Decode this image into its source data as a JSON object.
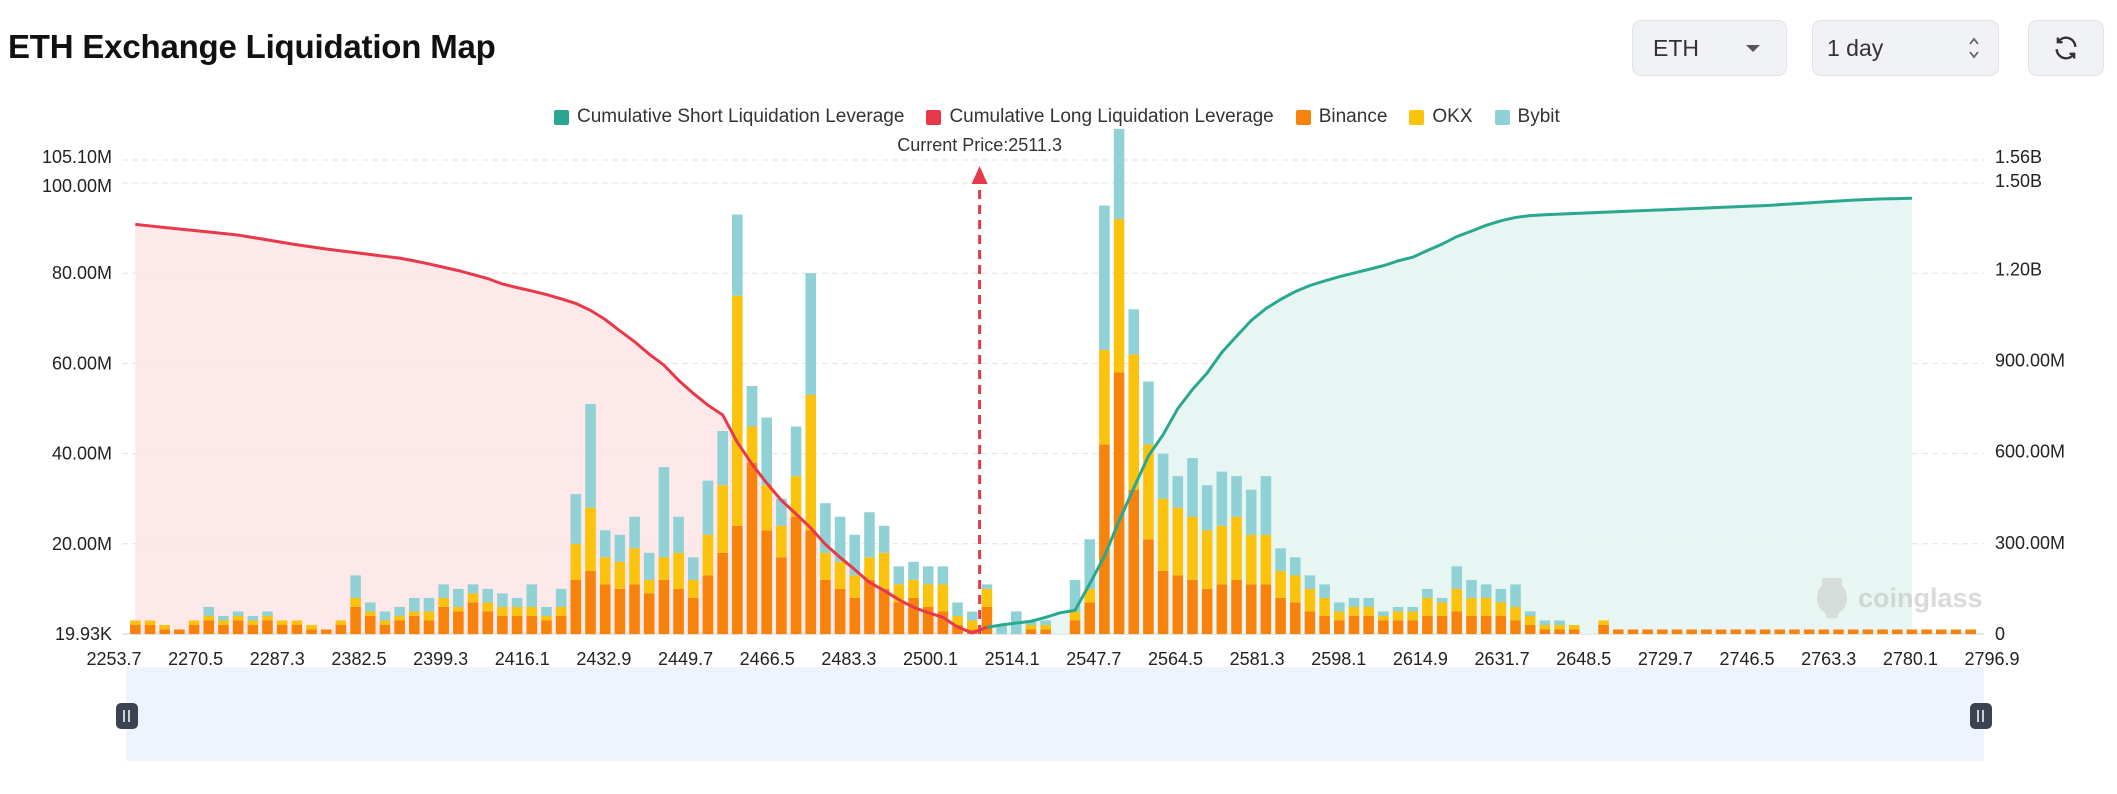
{
  "page": {
    "title": "ETH Exchange Liquidation Map"
  },
  "controls": {
    "symbol": "ETH",
    "period": "1 day",
    "refresh_icon": "refresh-icon"
  },
  "colors": {
    "short": "#2aa88f",
    "long": "#e8394a",
    "binance": "#f7830d",
    "okx": "#fbc20e",
    "bybit": "#8fd1d4",
    "short_fill": "#e4f5f1",
    "long_fill": "#fde4e6",
    "slider_bg": "#eef3fc"
  },
  "chart_data": {
    "type": "bar",
    "title": "",
    "current_price_label": "Current Price:2511.3",
    "current_price_index": 58,
    "legend": [
      "Cumulative Short Liquidation Leverage",
      "Cumulative Long Liquidation Leverage",
      "Binance",
      "OKX",
      "Bybit"
    ],
    "legend_placement": "top-center",
    "grid": true,
    "x_tick_labels": [
      "2253.7",
      "2270.5",
      "2287.3",
      "2382.5",
      "2399.3",
      "2416.1",
      "2432.9",
      "2449.7",
      "2466.5",
      "2483.3",
      "2500.1",
      "2514.1",
      "2547.7",
      "2564.5",
      "2581.3",
      "2598.1",
      "2614.9",
      "2631.7",
      "2648.5",
      "2729.7",
      "2746.5",
      "2763.3",
      "2780.1",
      "2796.9"
    ],
    "y_left": {
      "ticks": [
        "19.93K",
        "20.00M",
        "40.00M",
        "60.00M",
        "80.00M",
        "100.00M",
        "105.10M"
      ],
      "range": [
        0,
        105.1
      ],
      "unit": "M"
    },
    "y_right": {
      "ticks": [
        "0",
        "300.00M",
        "600.00M",
        "900.00M",
        "1.20B",
        "1.50B",
        "1.56B"
      ],
      "range": [
        0,
        1560
      ],
      "unit": "M"
    },
    "series": [
      {
        "name": "Binance",
        "values": [
          2,
          2,
          1,
          1,
          2,
          3,
          2,
          3,
          2,
          3,
          2,
          2,
          1,
          1,
          2,
          6,
          4,
          2,
          3,
          4,
          3,
          6,
          5,
          7,
          5,
          4,
          4,
          4,
          3,
          4,
          12,
          14,
          11,
          10,
          11,
          9,
          12,
          10,
          8,
          13,
          18,
          24,
          38,
          23,
          17,
          26,
          23,
          12,
          10,
          8,
          12,
          10,
          7,
          8,
          6,
          5,
          2,
          1,
          6,
          0,
          0,
          1,
          1,
          0,
          3,
          7,
          42,
          58,
          32,
          21,
          14,
          13,
          12,
          10,
          11,
          12,
          11,
          11,
          8,
          7,
          5,
          4,
          3,
          4,
          4,
          3,
          3,
          3,
          4,
          4,
          5,
          4,
          4,
          4,
          3,
          2,
          1,
          1,
          1,
          0,
          2,
          1,
          1,
          1,
          1,
          1,
          1,
          1,
          1,
          1,
          1,
          1,
          1,
          1,
          1,
          1,
          1,
          1,
          1,
          1,
          1,
          1,
          1,
          1,
          1,
          1
        ]
      },
      {
        "name": "OKX",
        "values": [
          1,
          1,
          1,
          0,
          1,
          1,
          1,
          1,
          1,
          1,
          1,
          1,
          1,
          0,
          1,
          2,
          1,
          1,
          1,
          1,
          2,
          2,
          1,
          2,
          2,
          2,
          2,
          2,
          1,
          2,
          8,
          14,
          6,
          6,
          8,
          3,
          5,
          8,
          4,
          9,
          15,
          51,
          8,
          10,
          7,
          9,
          30,
          6,
          6,
          5,
          5,
          8,
          4,
          4,
          5,
          6,
          2,
          2,
          4,
          0,
          0,
          1,
          1,
          0,
          2,
          3,
          21,
          34,
          30,
          21,
          16,
          15,
          14,
          13,
          13,
          14,
          11,
          11,
          6,
          6,
          5,
          4,
          2,
          2,
          2,
          1,
          2,
          2,
          4,
          3,
          5,
          4,
          4,
          3,
          3,
          2,
          1,
          1,
          1,
          0,
          1,
          0,
          0,
          0,
          0,
          0,
          0,
          0,
          0,
          0,
          0,
          0,
          0,
          0,
          0,
          0,
          0,
          0,
          0,
          0,
          0,
          0,
          0,
          0,
          0,
          0
        ]
      },
      {
        "name": "Bybit",
        "values": [
          0,
          0,
          0,
          0,
          0,
          2,
          1,
          1,
          1,
          1,
          0,
          0,
          0,
          0,
          0,
          5,
          2,
          2,
          2,
          3,
          3,
          3,
          4,
          2,
          3,
          3,
          2,
          5,
          2,
          4,
          11,
          23,
          6,
          6,
          7,
          6,
          20,
          8,
          5,
          12,
          12,
          18,
          9,
          15,
          6,
          11,
          27,
          11,
          10,
          9,
          10,
          6,
          4,
          4,
          4,
          4,
          3,
          2,
          1,
          2,
          5,
          1,
          1,
          0,
          7,
          11,
          32,
          20,
          10,
          14,
          10,
          7,
          13,
          10,
          12,
          9,
          10,
          13,
          5,
          4,
          3,
          3,
          2,
          2,
          2,
          1,
          1,
          1,
          2,
          1,
          5,
          4,
          3,
          3,
          5,
          1,
          1,
          1,
          0,
          0,
          0,
          0,
          0,
          0,
          0,
          0,
          0,
          0,
          0,
          0,
          0,
          0,
          0,
          0,
          0,
          0,
          0,
          0,
          0,
          0,
          0,
          0,
          0,
          0,
          0,
          0
        ]
      },
      {
        "name": "Cumulative Long Liquidation Leverage",
        "values": [
          1348,
          1343,
          1338,
          1333,
          1328,
          1323,
          1318,
          1313,
          1305,
          1297,
          1289,
          1281,
          1274,
          1267,
          1261,
          1255,
          1249,
          1243,
          1237,
          1228,
          1218,
          1207,
          1196,
          1183,
          1170,
          1152,
          1140,
          1129,
          1117,
          1103,
          1088,
          1065,
          1035,
          998,
          962,
          921,
          885,
          835,
          792,
          753,
          721,
          631,
          559,
          497,
          440,
          395,
          349,
          295,
          252,
          212,
          170,
          143,
          113,
          88,
          70,
          55,
          23,
          4,
          22,
          null,
          null,
          null,
          null,
          null,
          null,
          null,
          null,
          null,
          null,
          null,
          null,
          null,
          null,
          null,
          null,
          null,
          null,
          null,
          null,
          null,
          null,
          null,
          null,
          null,
          null,
          null,
          null,
          null,
          null,
          null,
          null,
          null,
          null,
          null,
          null,
          null,
          null,
          null,
          null,
          null,
          null,
          null,
          null,
          null,
          null,
          null,
          null,
          null,
          null,
          null,
          null,
          null,
          null,
          null,
          null,
          null,
          null,
          null,
          null,
          null,
          null,
          null,
          null,
          null
        ]
      },
      {
        "name": "Cumulative Short Liquidation Leverage",
        "values": [
          null,
          null,
          null,
          null,
          null,
          null,
          null,
          null,
          null,
          null,
          null,
          null,
          null,
          null,
          null,
          null,
          null,
          null,
          null,
          null,
          null,
          null,
          null,
          null,
          null,
          null,
          null,
          null,
          null,
          null,
          null,
          null,
          null,
          null,
          null,
          null,
          null,
          null,
          null,
          null,
          null,
          null,
          null,
          null,
          null,
          null,
          null,
          null,
          null,
          null,
          null,
          null,
          null,
          null,
          null,
          null,
          null,
          null,
          22,
          30,
          36,
          42,
          55,
          70,
          78,
          165,
          256,
          372,
          480,
          586,
          656,
          742,
          805,
          859,
          927,
          980,
          1032,
          1071,
          1101,
          1127,
          1147,
          1162,
          1176,
          1188,
          1200,
          1212,
          1228,
          1240,
          1262,
          1283,
          1308,
          1326,
          1345,
          1360,
          1371,
          1377,
          1380,
          1382,
          1384,
          1386,
          1388,
          1390,
          1392,
          1394,
          1396,
          1398,
          1400,
          1402,
          1404,
          1406,
          1408,
          1410,
          1413,
          1416,
          1419,
          1422,
          1425,
          1428,
          1430,
          1432,
          1433,
          1434
        ]
      }
    ]
  }
}
